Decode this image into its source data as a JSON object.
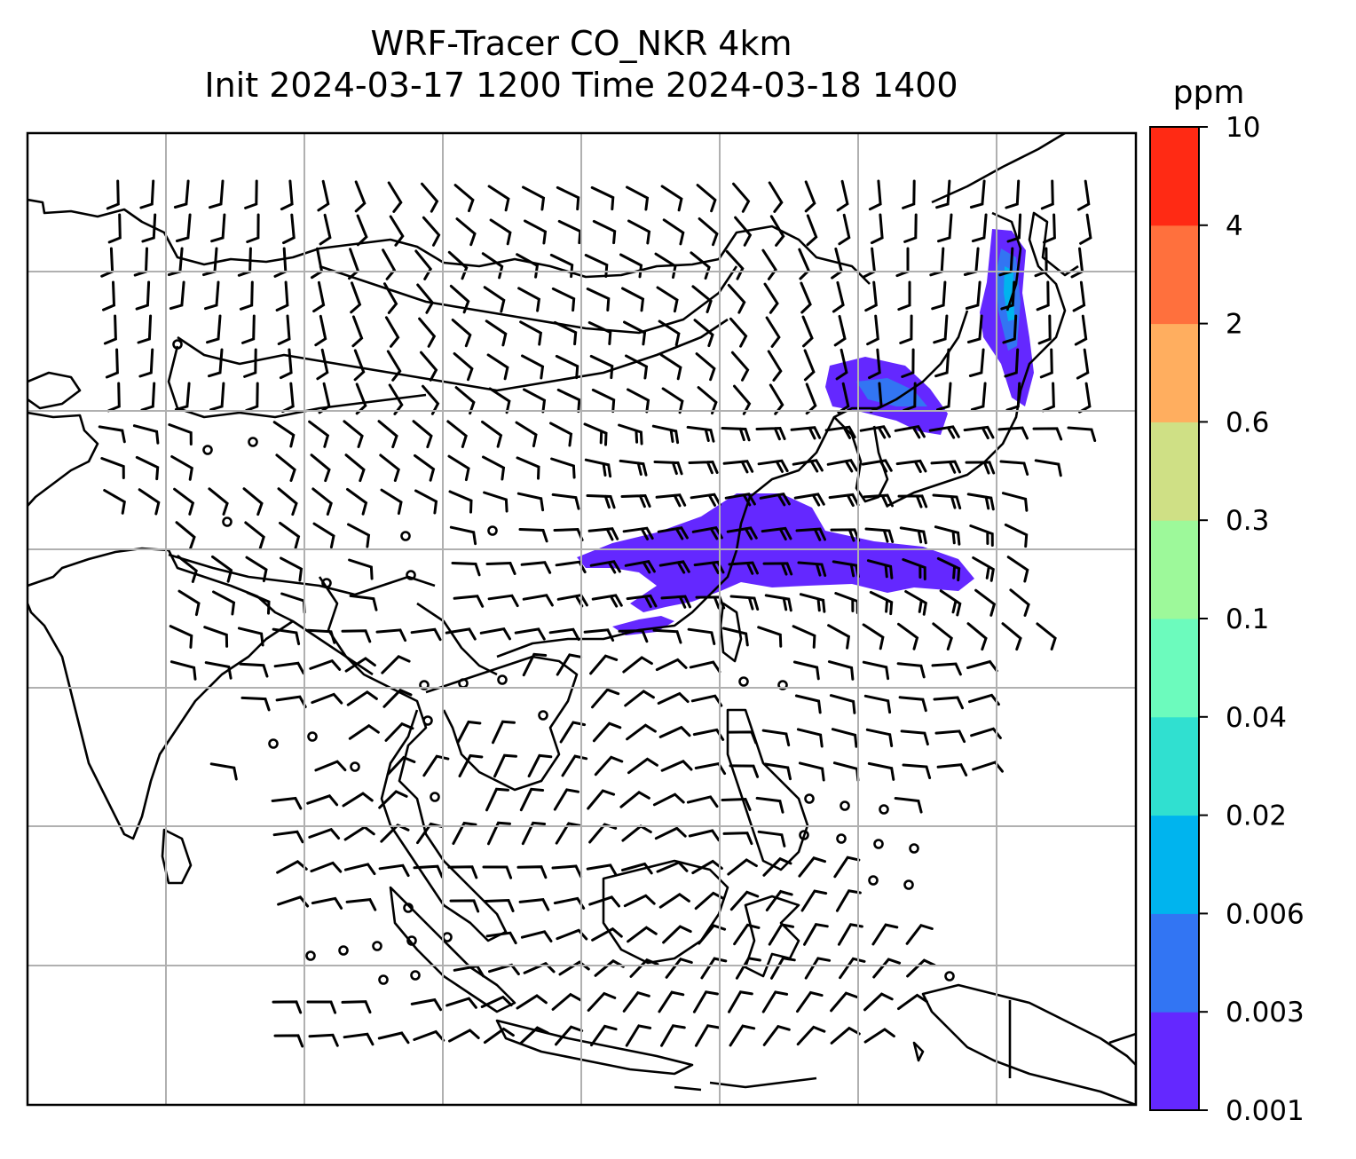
{
  "title": {
    "line1": "WRF-Tracer CO_NKR 4km",
    "line2": "Init 2024-03-17 1200 Time 2024-03-18 1400"
  },
  "colorbar": {
    "unit": "ppm",
    "levels": [
      "0.001",
      "0.003",
      "0.006",
      "0.02",
      "0.04",
      "0.1",
      "0.3",
      "0.6",
      "2",
      "4",
      "10"
    ],
    "colors": [
      "#6428ff",
      "#3275f3",
      "#00b4ee",
      "#30e0d0",
      "#6cfbbd",
      "#9df99a",
      "#cfe085",
      "#ffae5f",
      "#ff703d",
      "#ff2a14"
    ]
  },
  "map": {
    "gridlines": true,
    "coastline_color": "#000000",
    "grid_color": "#b0b0b0",
    "plume_color": "#6428ff",
    "plume_mid_color": "#3275f3",
    "plume_core_color": "#00b4ee"
  }
}
